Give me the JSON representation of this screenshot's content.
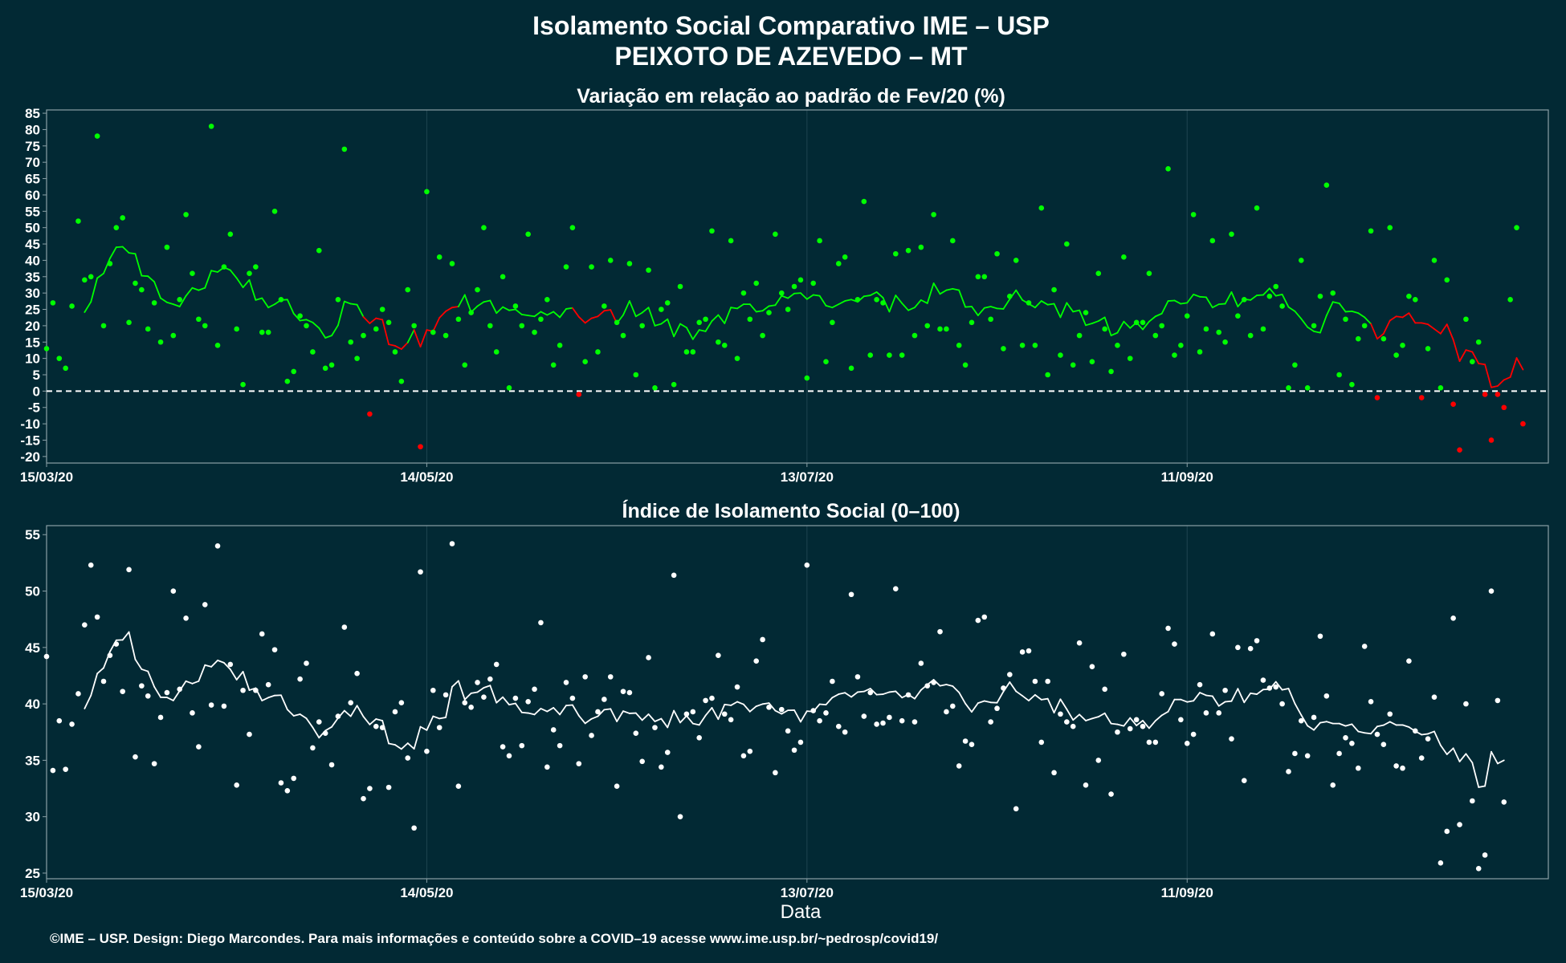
{
  "title": "Isolamento Social Comparativo IME – USP",
  "subtitle": "PEIXOTO DE AZEVEDO – MT",
  "footer": "©IME – USP. Design: Diego Marcondes. Para mais informações e conteúdo sobre a COVID–19 acesse www.ime.usp.br/~pedrosp/covid19/",
  "colors": {
    "background": "#022934",
    "positive": "#00FF00",
    "negative": "#FF0000",
    "index": "#FFFFFF",
    "grid": "#1E4450"
  },
  "chart_data": [
    {
      "type": "scatter",
      "title": "Variação em relação ao padrão de Fev/20 (%)",
      "xlabel": "",
      "ylabel": "",
      "ylim": [
        -22,
        86
      ],
      "yticks": [
        -20,
        -15,
        -10,
        -5,
        0,
        5,
        10,
        15,
        20,
        25,
        30,
        35,
        40,
        45,
        50,
        55,
        60,
        65,
        70,
        75,
        80,
        85
      ],
      "xlim": [
        "2020-03-15",
        "2020-11-07"
      ],
      "xticks": [
        {
          "date": "2020-03-15",
          "label": "15/03/20"
        },
        {
          "date": "2020-05-14",
          "label": "14/05/20"
        },
        {
          "date": "2020-07-13",
          "label": "13/07/20"
        },
        {
          "date": "2020-09-11",
          "label": "11/09/20"
        }
      ],
      "reference_line": 0,
      "moving_average_window": 7,
      "point_colors": "green for values >= 0, red for values < 0",
      "grid": true,
      "start_date": "2020-03-15",
      "values": [
        13,
        27,
        10,
        7,
        26,
        52,
        34,
        35,
        78,
        20,
        39,
        50,
        53,
        21,
        33,
        31,
        19,
        27,
        15,
        44,
        17,
        28,
        54,
        36,
        22,
        20,
        81,
        14,
        38,
        48,
        19,
        2,
        36,
        38,
        18,
        18,
        55,
        28,
        3,
        6,
        23,
        20,
        12,
        43,
        7,
        8,
        28,
        74,
        15,
        10,
        17,
        -7,
        19,
        25,
        21,
        12,
        3,
        31,
        20,
        -17,
        61,
        18,
        41,
        17,
        39,
        22,
        8,
        24,
        31,
        50,
        20,
        12,
        35,
        1,
        26,
        20,
        48,
        18,
        22,
        28,
        8,
        14,
        38,
        50,
        -1,
        9,
        38,
        12,
        26,
        40,
        21,
        17,
        39,
        5,
        20,
        37,
        1,
        25,
        27,
        2,
        32,
        12,
        12,
        21,
        22,
        49,
        15,
        14,
        46,
        10,
        30,
        22,
        33,
        17,
        24,
        48,
        30,
        25,
        32,
        34,
        4,
        33,
        46,
        9,
        21,
        39,
        41,
        7,
        28,
        58,
        11,
        28,
        27,
        11,
        42,
        11,
        43,
        17,
        44,
        20,
        54,
        19,
        19,
        46,
        14,
        8,
        21,
        35,
        35,
        22,
        42,
        13,
        29,
        40,
        14,
        27,
        14,
        56,
        5,
        31,
        11,
        45,
        8,
        17,
        24,
        9,
        36,
        19,
        6,
        14,
        41,
        10,
        21,
        21,
        36,
        17,
        20,
        68,
        11,
        14,
        23,
        54,
        12,
        19,
        46,
        18,
        15,
        48,
        23,
        28,
        17,
        56,
        19,
        29,
        32,
        26,
        1,
        8,
        40,
        1,
        20,
        29,
        63,
        30,
        5,
        22,
        2,
        16,
        20,
        49,
        -2,
        16,
        50,
        11,
        14,
        29,
        28,
        -2,
        13,
        40,
        1,
        34,
        -4,
        -18,
        22,
        9,
        15,
        -1,
        -15,
        -1,
        -5,
        28,
        50,
        -10
      ]
    },
    {
      "type": "scatter",
      "title": "Índice de Isolamento Social (0–100)",
      "xlabel": "Data",
      "ylabel": "",
      "ylim": [
        24.5,
        55.8
      ],
      "yticks": [
        25,
        30,
        35,
        40,
        45,
        50,
        55
      ],
      "xlim": [
        "2020-03-15",
        "2020-11-07"
      ],
      "xticks": [
        {
          "date": "2020-03-15",
          "label": "15/03/20"
        },
        {
          "date": "2020-05-14",
          "label": "14/05/20"
        },
        {
          "date": "2020-07-13",
          "label": "13/07/20"
        },
        {
          "date": "2020-09-11",
          "label": "11/09/20"
        }
      ],
      "moving_average_window": 7,
      "grid": true,
      "start_date": "2020-03-15",
      "values": [
        44.2,
        34.1,
        38.5,
        34.2,
        38.2,
        40.9,
        47.0,
        52.3,
        47.7,
        42.0,
        44.3,
        45.3,
        41.1,
        51.9,
        35.3,
        41.6,
        40.7,
        34.7,
        38.8,
        41.0,
        50.0,
        41.3,
        47.6,
        39.2,
        36.2,
        48.8,
        39.9,
        54.0,
        39.8,
        43.5,
        32.8,
        41.2,
        37.3,
        41.2,
        46.2,
        41.7,
        44.8,
        33.0,
        32.3,
        33.4,
        42.2,
        43.6,
        36.1,
        38.4,
        37.4,
        34.6,
        38.9,
        46.8,
        40.1,
        42.7,
        31.6,
        32.5,
        38.0,
        37.9,
        32.6,
        39.3,
        40.1,
        35.2,
        29.0,
        51.7,
        35.8,
        41.2,
        37.9,
        40.8,
        54.2,
        32.7,
        40.1,
        39.7,
        41.9,
        40.6,
        42.2,
        43.5,
        36.2,
        35.4,
        40.5,
        36.3,
        40.2,
        41.3,
        47.2,
        34.4,
        37.7,
        36.3,
        41.9,
        40.5,
        34.7,
        42.4,
        37.2,
        39.3,
        40.4,
        42.4,
        32.7,
        41.1,
        41.0,
        37.4,
        34.9,
        44.1,
        37.9,
        34.4,
        35.7,
        51.4,
        30.0,
        39.1,
        39.3,
        37.0,
        40.3,
        40.5,
        44.3,
        39.1,
        38.6,
        41.5,
        35.4,
        35.8,
        43.8,
        45.7,
        39.7,
        33.9,
        39.5,
        37.6,
        35.9,
        36.6,
        52.3,
        39.4,
        38.5,
        39.2,
        42.0,
        38.0,
        37.5,
        49.7,
        42.4,
        38.9,
        41.0,
        38.2,
        38.3,
        38.8,
        50.2,
        38.5,
        40.8,
        38.4,
        43.6,
        41.6,
        41.9,
        46.4,
        39.3,
        39.8,
        34.5,
        36.7,
        36.4,
        47.4,
        47.7,
        38.4,
        39.6,
        41.4,
        42.6,
        30.7,
        44.6,
        44.7,
        42.0,
        36.6,
        42.0,
        33.9,
        39.1,
        38.4,
        38.0,
        45.4,
        32.8,
        43.3,
        35.0,
        41.3,
        32.0,
        37.5,
        44.4,
        37.8,
        38.6,
        38.0,
        36.6,
        36.6,
        40.9,
        46.7,
        45.3,
        38.6,
        36.5,
        37.3,
        41.7,
        39.2,
        46.2,
        39.2,
        41.2,
        36.9,
        45.0,
        33.2,
        44.9,
        45.6,
        42.1,
        41.4,
        41.5,
        40.0,
        34.0,
        35.6,
        38.5,
        35.4,
        38.8,
        46.0,
        40.7,
        32.8,
        35.6,
        37.0,
        36.5,
        34.3,
        45.1,
        40.2,
        37.3,
        36.4,
        39.1,
        34.5,
        34.3,
        43.8,
        37.6,
        35.2,
        36.9,
        40.6,
        25.9,
        28.7,
        47.6,
        29.3,
        40.0,
        31.4,
        25.4,
        26.6,
        50.0,
        40.3,
        31.3
      ]
    }
  ]
}
